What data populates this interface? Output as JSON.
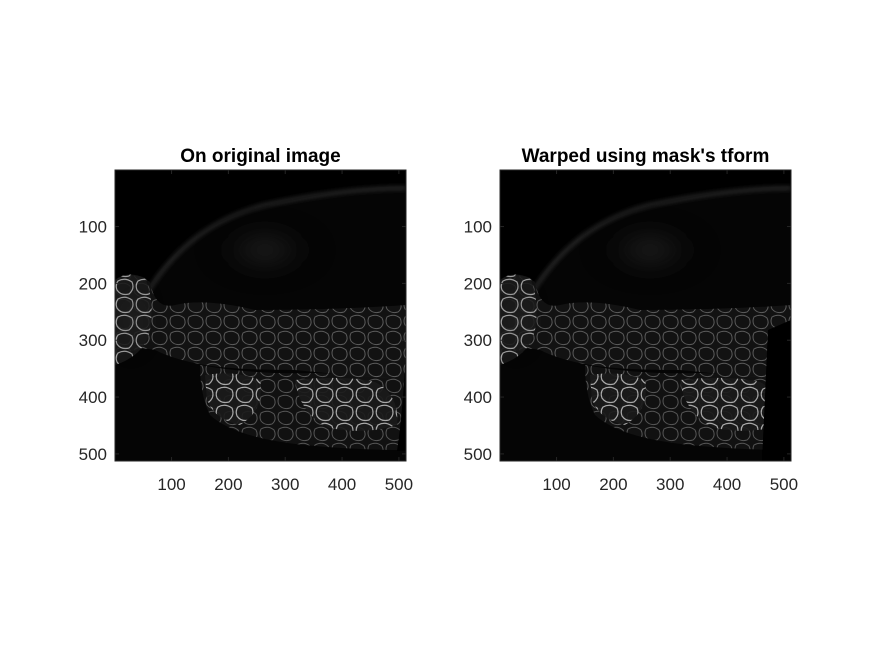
{
  "figure": {
    "background": "#ffffff",
    "axis_color": "#262626",
    "panels": [
      {
        "id": "left",
        "title": "On original image",
        "image_description_icon": "microscopy-image",
        "x_ticks": [
          "100",
          "200",
          "300",
          "400",
          "500"
        ],
        "y_ticks": [
          "100",
          "200",
          "300",
          "400",
          "500"
        ],
        "x_tick_values": [
          100,
          200,
          300,
          400,
          500
        ],
        "y_tick_values": [
          100,
          200,
          300,
          400,
          500
        ],
        "xlim": [
          0.5,
          512.5
        ],
        "ylim": [
          0.5,
          512.5
        ]
      },
      {
        "id": "right",
        "title": "Warped using mask's tform",
        "image_description_icon": "warped-microscopy-image",
        "x_ticks": [
          "100",
          "200",
          "300",
          "400",
          "500"
        ],
        "y_ticks": [
          "100",
          "200",
          "300",
          "400",
          "500"
        ],
        "x_tick_values": [
          100,
          200,
          300,
          400,
          500
        ],
        "y_tick_values": [
          100,
          200,
          300,
          400,
          500
        ],
        "xlim": [
          0.5,
          512.5
        ],
        "ylim": [
          0.5,
          512.5
        ]
      }
    ]
  }
}
